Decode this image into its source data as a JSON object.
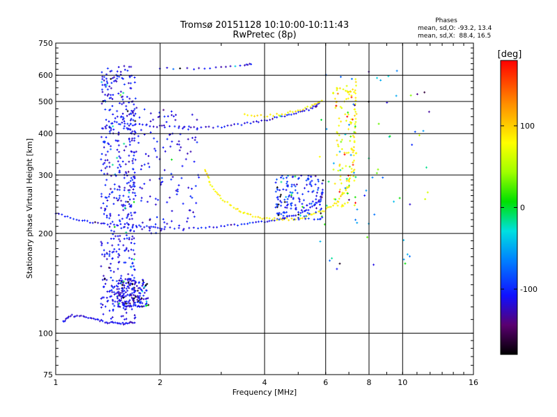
{
  "chart_data": {
    "type": "scatter",
    "title": "Tromsø 20151128 10:10:00-10:11:43",
    "subtitle": "RwPretec (8p)",
    "xlabel": "Frequency [MHz]",
    "ylabel": "Stationary phase Virtual Height [km]",
    "x_scale": "log",
    "y_scale": "log",
    "xlim": [
      1,
      16
    ],
    "ylim": [
      75,
      750
    ],
    "grid": true,
    "x_ticks": [
      1,
      2,
      4,
      6,
      8,
      10,
      16
    ],
    "y_ticks": [
      75,
      100,
      200,
      300,
      400,
      500,
      600,
      750
    ],
    "phase_box": {
      "heading": "Phases",
      "line1": "mean, sd,O: -93.2, 13.4",
      "line2": "mean, sd,X:  88.4, 16.5"
    },
    "colorbar": {
      "label": "[deg]",
      "range": [
        -180,
        180
      ],
      "ticks": [
        100,
        0,
        -100
      ]
    },
    "series": [
      {
        "kind": "curve",
        "phase": -110,
        "spread": 0.006,
        "n": 7,
        "points": [
          [
            1.0,
            230
          ],
          [
            1.15,
            220
          ],
          [
            1.3,
            215
          ],
          [
            1.5,
            213
          ],
          [
            1.8,
            210
          ],
          [
            2.0,
            208
          ],
          [
            2.5,
            207
          ],
          [
            3.0,
            210
          ],
          [
            3.5,
            213
          ],
          [
            4.0,
            217
          ],
          [
            4.5,
            222
          ],
          [
            5.0,
            228
          ],
          [
            5.5,
            240
          ],
          [
            5.8,
            255
          ],
          [
            5.9,
            270
          ]
        ]
      },
      {
        "kind": "curve",
        "phase": -110,
        "spread": 0.008,
        "n": 7,
        "points": [
          [
            1.5,
            430
          ],
          [
            1.7,
            425
          ],
          [
            2.0,
            420
          ],
          [
            2.5,
            418
          ],
          [
            3.0,
            420
          ],
          [
            3.5,
            428
          ],
          [
            4.0,
            438
          ],
          [
            4.5,
            450
          ],
          [
            5.0,
            462
          ],
          [
            5.5,
            478
          ],
          [
            5.8,
            495
          ]
        ]
      },
      {
        "kind": "curve",
        "phase": 85,
        "spread": 0.008,
        "n": 7,
        "points": [
          [
            2.7,
            310
          ],
          [
            2.8,
            280
          ],
          [
            3.0,
            255
          ],
          [
            3.3,
            238
          ],
          [
            3.6,
            228
          ],
          [
            4.0,
            222
          ],
          [
            4.5,
            220
          ],
          [
            5.0,
            222
          ],
          [
            5.5,
            228
          ],
          [
            6.0,
            236
          ],
          [
            6.5,
            250
          ],
          [
            7.0,
            278
          ],
          [
            7.2,
            330
          ],
          [
            7.3,
            420
          ],
          [
            7.3,
            500
          ],
          [
            7.35,
            600
          ]
        ]
      },
      {
        "kind": "curve",
        "phase": 85,
        "spread": 0.007,
        "n": 6,
        "points": [
          [
            3.5,
            455
          ],
          [
            4.0,
            452
          ],
          [
            4.5,
            458
          ],
          [
            5.0,
            470
          ],
          [
            5.5,
            485
          ],
          [
            5.9,
            505
          ]
        ]
      },
      {
        "kind": "curve",
        "phase": -115,
        "spread": 0.005,
        "n": 5,
        "points": [
          [
            2.0,
            630
          ],
          [
            2.5,
            628
          ],
          [
            3.0,
            635
          ],
          [
            3.5,
            645
          ],
          [
            3.7,
            650
          ]
        ]
      },
      {
        "kind": "curve",
        "phase": -115,
        "spread": 0.007,
        "n": 7,
        "points": [
          [
            1.05,
            108
          ],
          [
            1.1,
            113
          ],
          [
            1.2,
            112
          ],
          [
            1.3,
            110
          ],
          [
            1.4,
            108
          ],
          [
            1.5,
            107
          ],
          [
            1.6,
            107
          ],
          [
            1.7,
            108
          ]
        ]
      },
      {
        "kind": "cloud",
        "phase": -110,
        "n": 520,
        "f": [
          1.35,
          1.7
        ],
        "h": [
          110,
          640
        ],
        "alt": 0.08
      },
      {
        "kind": "cloud",
        "phase": -115,
        "n": 160,
        "f": [
          1.5,
          1.85
        ],
        "h": [
          120,
          145
        ],
        "alt": 0.25
      },
      {
        "kind": "cloud",
        "phase": -110,
        "n": 160,
        "f": [
          1.6,
          2.6
        ],
        "h": [
          200,
          480
        ],
        "alt": 0.08
      },
      {
        "kind": "cloud",
        "phase": -100,
        "n": 160,
        "f": [
          4.3,
          5.9
        ],
        "h": [
          220,
          300
        ],
        "alt": 0.2
      },
      {
        "kind": "cloud",
        "phase": 80,
        "n": 120,
        "f": [
          6.3,
          7.4
        ],
        "h": [
          240,
          560
        ],
        "alt": 0.15
      },
      {
        "kind": "cloud",
        "phase": -60,
        "n": 70,
        "f": [
          5.5,
          12.0
        ],
        "h": [
          150,
          640
        ],
        "alt": 0.6
      }
    ]
  }
}
